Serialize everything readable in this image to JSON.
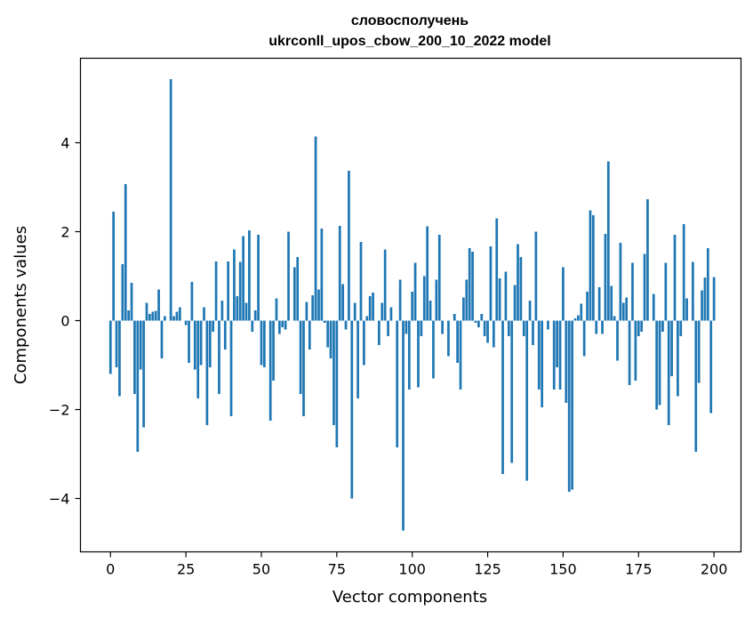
{
  "chart_data": {
    "type": "bar",
    "title_line1": "словосполучень",
    "title_line2": "ukrconll_upos_cbow_200_10_2022 model",
    "xlabel": "Vector components",
    "ylabel": "Components values",
    "xlim": [
      -9.95,
      208.95
    ],
    "ylim": [
      -5.2,
      5.9
    ],
    "xticks": [
      0,
      25,
      50,
      75,
      100,
      125,
      150,
      175,
      200
    ],
    "yticks": [
      -4,
      -2,
      0,
      2,
      4
    ],
    "ytick_labels": [
      "−4",
      "−2",
      "0",
      "2",
      "4"
    ],
    "grid": false,
    "bar_color": "#1f77b4",
    "values": [
      -1.2,
      2.45,
      -1.05,
      -1.7,
      1.27,
      3.07,
      0.23,
      0.85,
      -1.65,
      -2.95,
      -1.1,
      -2.4,
      0.4,
      0.15,
      0.2,
      0.22,
      0.7,
      -0.85,
      0.1,
      0.0,
      5.43,
      0.1,
      0.2,
      0.3,
      0.0,
      -0.1,
      -0.95,
      0.87,
      -1.1,
      -1.75,
      -1.0,
      0.3,
      -2.35,
      -1.05,
      -0.25,
      1.33,
      -1.65,
      0.45,
      -0.65,
      1.33,
      -2.15,
      1.6,
      0.55,
      1.32,
      1.9,
      0.4,
      2.03,
      -0.25,
      0.23,
      1.93,
      -1.0,
      -1.05,
      0.0,
      -2.25,
      -1.35,
      0.5,
      -0.3,
      -0.15,
      -0.2,
      2.0,
      0.0,
      1.2,
      1.43,
      -1.65,
      -2.15,
      0.42,
      -0.65,
      0.57,
      4.14,
      0.7,
      2.07,
      -0.05,
      -0.6,
      -0.85,
      -2.35,
      -2.85,
      2.13,
      0.82,
      -0.2,
      3.37,
      -4.0,
      0.4,
      -1.75,
      1.77,
      -1.0,
      0.1,
      0.55,
      0.63,
      0.0,
      -0.55,
      0.4,
      1.6,
      -0.35,
      0.3,
      0.0,
      -2.85,
      0.92,
      -4.72,
      -0.3,
      -1.55,
      0.65,
      1.3,
      -1.5,
      -0.35,
      1.0,
      2.12,
      0.45,
      -1.3,
      0.92,
      1.93,
      -0.3,
      0.0,
      -0.8,
      0.0,
      0.15,
      -0.95,
      -1.55,
      0.52,
      0.92,
      1.63,
      1.55,
      -0.05,
      -0.15,
      0.15,
      -0.35,
      -0.5,
      1.67,
      -0.6,
      2.3,
      0.95,
      -3.45,
      1.1,
      -0.35,
      -3.2,
      0.8,
      1.72,
      1.43,
      -0.35,
      -3.6,
      0.45,
      -0.55,
      2.0,
      -1.55,
      -1.95,
      0.0,
      -0.2,
      0.0,
      -1.55,
      -1.05,
      -1.55,
      1.2,
      -1.85,
      -3.85,
      -3.8,
      0.05,
      0.12,
      0.38,
      -0.8,
      0.65,
      2.48,
      2.37,
      -0.3,
      0.75,
      -0.3,
      1.95,
      3.58,
      0.78,
      0.1,
      -0.9,
      1.75,
      0.4,
      0.52,
      -1.45,
      1.3,
      -1.35,
      -0.35,
      -0.25,
      1.5,
      2.73,
      0.0,
      0.6,
      -2.0,
      -1.9,
      -0.25,
      1.3,
      -2.35,
      -1.25,
      1.93,
      -1.7,
      -0.35,
      2.17,
      0.5,
      0.0,
      1.32,
      -2.95,
      -1.4,
      0.68,
      0.97,
      1.63,
      -2.08,
      0.98
    ]
  }
}
